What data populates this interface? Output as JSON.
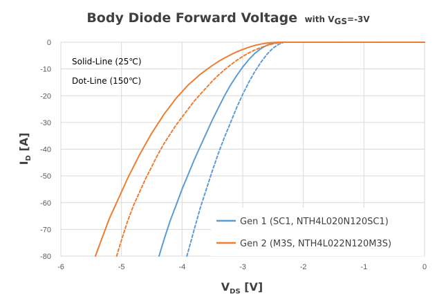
{
  "chart_data": {
    "type": "line",
    "title": "Body Diode Forward Voltage",
    "title_suffix": {
      "prefix": "with V",
      "sub": "GS",
      "suffix": "=-3V"
    },
    "xlabel": {
      "main": "V",
      "sub": "DS",
      "tail": " [V]"
    },
    "ylabel": {
      "main": "I",
      "sub": "D",
      "tail": " [A]"
    },
    "xlim": [
      -6,
      0
    ],
    "ylim": [
      -80,
      0
    ],
    "xticks": [
      "-6",
      "-5",
      "-4",
      "-3",
      "-2",
      "-1",
      "0"
    ],
    "yticks": [
      "0",
      "-10",
      "-20",
      "-30",
      "-40",
      "-50",
      "-60",
      "-70",
      "-80"
    ],
    "grid": true,
    "annotations": [
      "Solid-Line (25℃)",
      "Dot-Line (150℃)"
    ],
    "legend_position": "bottom-right",
    "series": [
      {
        "name": "Gen 1 (SC1, NTH4L020N120SC1)",
        "color": "#5b9bd5",
        "style": "solid",
        "x": [
          -4.38,
          -4.3,
          -4.2,
          -4.1,
          -4.0,
          -3.9,
          -3.8,
          -3.7,
          -3.6,
          -3.5,
          -3.4,
          -3.3,
          -3.2,
          -3.1,
          -3.0,
          -2.9,
          -2.8,
          -2.7,
          -2.6,
          -2.5,
          -2.4,
          0
        ],
        "y": [
          -80,
          -74,
          -67,
          -61,
          -55,
          -49.5,
          -44,
          -39,
          -34,
          -29,
          -24.5,
          -20,
          -16,
          -12.5,
          -9.3,
          -6.5,
          -4.2,
          -2.4,
          -1.1,
          -0.4,
          0,
          0
        ]
      },
      {
        "name": "Gen 1 (SC1, NTH4L020N120SC1) 150℃",
        "color": "#5b9bd5",
        "style": "dashed",
        "x": [
          -3.92,
          -3.8,
          -3.7,
          -3.6,
          -3.5,
          -3.4,
          -3.3,
          -3.2,
          -3.1,
          -3.0,
          -2.9,
          -2.8,
          -2.7,
          -2.6,
          -2.5,
          -2.4,
          -2.32,
          0
        ],
        "y": [
          -80,
          -70,
          -62,
          -55,
          -48,
          -41.5,
          -35.5,
          -30,
          -24.5,
          -19.5,
          -15,
          -11,
          -7.5,
          -4.5,
          -2.2,
          -0.7,
          0,
          0
        ]
      },
      {
        "name": "Gen 2 (M3S, NTH4L022N120M3S)",
        "color": "#ed7d31",
        "style": "solid",
        "x": [
          -5.43,
          -5.3,
          -5.2,
          -5.1,
          -5.0,
          -4.9,
          -4.8,
          -4.7,
          -4.6,
          -4.5,
          -4.4,
          -4.3,
          -4.2,
          -4.1,
          -4.0,
          -3.9,
          -3.8,
          -3.7,
          -3.6,
          -3.5,
          -3.4,
          -3.3,
          -3.2,
          -3.1,
          -3.0,
          -2.9,
          -2.8,
          -2.7,
          -2.6,
          -2.5,
          -2.4,
          -2.3,
          0
        ],
        "y": [
          -80,
          -72,
          -66,
          -61,
          -56,
          -51,
          -46.5,
          -42,
          -38,
          -34,
          -30.5,
          -27,
          -24,
          -21,
          -18.5,
          -16,
          -14,
          -12,
          -10.3,
          -8.7,
          -7.2,
          -5.9,
          -4.7,
          -3.6,
          -2.7,
          -1.9,
          -1.2,
          -0.7,
          -0.3,
          -0.1,
          0,
          0,
          0
        ]
      },
      {
        "name": "Gen 2 (M3S, NTH4L022N120M3S) 150℃",
        "color": "#ed7d31",
        "style": "dashed",
        "x": [
          -5.08,
          -5.0,
          -4.9,
          -4.8,
          -4.7,
          -4.6,
          -4.5,
          -4.4,
          -4.3,
          -4.2,
          -4.1,
          -4.0,
          -3.9,
          -3.8,
          -3.7,
          -3.6,
          -3.5,
          -3.4,
          -3.3,
          -3.2,
          -3.1,
          -3.0,
          -2.9,
          -2.8,
          -2.7,
          -2.6,
          -2.5,
          -2.4,
          -2.3,
          -2.2,
          0
        ],
        "y": [
          -80,
          -74,
          -67,
          -61,
          -56,
          -51,
          -46.5,
          -42,
          -38,
          -34.5,
          -31,
          -28,
          -25,
          -22,
          -19.5,
          -17,
          -14.5,
          -12.3,
          -10.3,
          -8.5,
          -6.8,
          -5.3,
          -4,
          -2.9,
          -2,
          -1.2,
          -0.6,
          -0.2,
          0,
          0,
          0
        ]
      }
    ],
    "legend": [
      {
        "label": "Gen 1 (SC1, NTH4L020N120SC1)",
        "color": "#5b9bd5"
      },
      {
        "label": "Gen 2 (M3S, NTH4L022N120M3S)",
        "color": "#ed7d31"
      }
    ]
  }
}
